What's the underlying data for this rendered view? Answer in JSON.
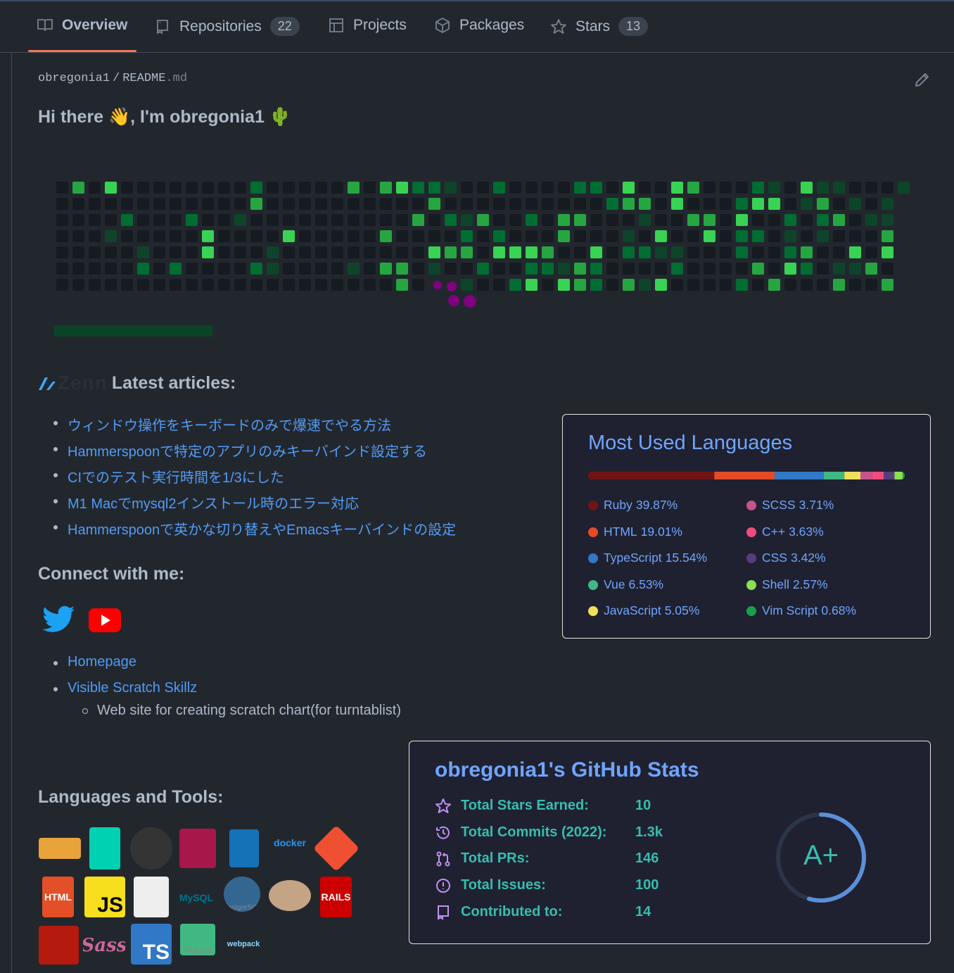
{
  "tabs": [
    {
      "label": "Overview"
    },
    {
      "label": "Repositories",
      "count": 22
    },
    {
      "label": "Projects"
    },
    {
      "label": "Packages"
    },
    {
      "label": "Stars",
      "count": 13
    }
  ],
  "breadcrumb": {
    "owner": "obregonia1",
    "separator": "/",
    "file": "README",
    "ext": ".md"
  },
  "greeting": "Hi there 👋, I'm obregonia1 🌵",
  "zenn": {
    "logo": "Zenn",
    "heading": "Latest articles:",
    "articles": [
      "ウィンドウ操作をキーボードのみで爆速でやる方法",
      "Hammerspoonで特定のアプリのみキーバインド設定する",
      "CIでのテスト実行時間を1/3にした",
      "M1 Macでmysql2インストール時のエラー対応",
      "Hammerspoonで英かな切り替えやEmacsキーバインドの設定"
    ]
  },
  "languages_card": {
    "title": "Most Used Languages",
    "names": [
      "Ruby",
      "HTML",
      "TypeScript",
      "Vue",
      "JavaScript",
      "SCSS",
      "C++",
      "CSS",
      "Shell",
      "Vim Script"
    ],
    "values": [
      39.87,
      19.01,
      15.54,
      6.53,
      5.05,
      3.71,
      3.63,
      3.42,
      2.57,
      0.68
    ],
    "value_labels": [
      "39.87%",
      "19.01%",
      "15.54%",
      "6.53%",
      "5.05%",
      "3.71%",
      "3.63%",
      "3.42%",
      "2.57%",
      "0.68%"
    ],
    "colors": [
      "#701516",
      "#e34c26",
      "#3178c6",
      "#41b883",
      "#f1e05a",
      "#c6538c",
      "#f34b7d",
      "#563d7c",
      "#89e051",
      "#199f4b"
    ]
  },
  "connect": {
    "heading": "Connect with me:",
    "links": [
      "Homepage",
      "Visible Scratch Skillz"
    ],
    "sub": "Web site for creating scratch chart(for turntablist)"
  },
  "tools": {
    "heading": "Languages and Tools:",
    "labels": [
      "docker",
      "HTML",
      "JS",
      "MySQL",
      "PostgreSQL",
      "RAILS",
      "TS",
      "Sass",
      "Vue.js",
      "webpack"
    ]
  },
  "stats_card": {
    "title": "obregonia1's GitHub Stats",
    "rows": [
      {
        "label": "Total Stars Earned:",
        "value": "10"
      },
      {
        "label": "Total Commits (2022):",
        "value": "1.3k"
      },
      {
        "label": "Total PRs:",
        "value": "146"
      },
      {
        "label": "Total Issues:",
        "value": "100"
      },
      {
        "label": "Contributed to:",
        "value": "14"
      }
    ],
    "grade": "A+"
  }
}
